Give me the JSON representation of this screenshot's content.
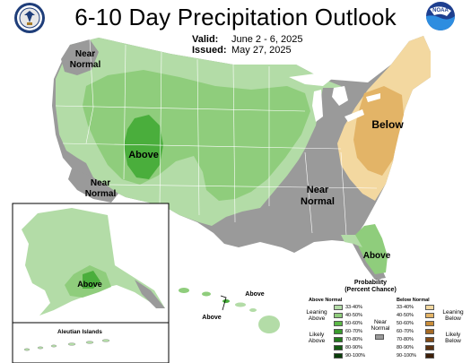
{
  "header": {
    "title": "6-10 Day Precipitation Outlook",
    "valid_label": "Valid:",
    "valid_value": "June 2 - 6, 2025",
    "issued_label": "Issued:",
    "issued_value": "May 27, 2025",
    "noaa_logo_text": "NOAA"
  },
  "map_labels": {
    "nw_near_normal_line1": "Near",
    "nw_near_normal_line2": "Normal",
    "sw_near_normal_line1": "Near",
    "sw_near_normal_line2": "Normal",
    "mid_near_normal_line1": "Near",
    "mid_near_normal_line2": "Normal",
    "above_rockies": "Above",
    "below_northeast": "Below",
    "above_florida": "Above",
    "above_alaska": "Above",
    "above_hawaii_1": "Above",
    "above_hawaii_2": "Above",
    "aleutian_islands": "Aleutian Islands"
  },
  "legend": {
    "title_line1": "Probability",
    "title_line2": "(Percent Chance)",
    "above_normal": "Above Normal",
    "below_normal": "Below Normal",
    "near_normal_line1": "Near",
    "near_normal_line2": "Normal",
    "leaning_above_1": "Leaning",
    "leaning_above_2": "Above",
    "likely_above_1": "Likely",
    "likely_above_2": "Above",
    "leaning_below_1": "Leaning",
    "leaning_below_2": "Below",
    "likely_below_1": "Likely",
    "likely_below_2": "Below",
    "above_bins": [
      {
        "range": "33-40%",
        "color": "#b3dca7"
      },
      {
        "range": "40-50%",
        "color": "#8fcd7c"
      },
      {
        "range": "50-60%",
        "color": "#5cb847"
      },
      {
        "range": "60-70%",
        "color": "#3a9b2e"
      },
      {
        "range": "70-80%",
        "color": "#237a1d"
      },
      {
        "range": "80-90%",
        "color": "#145a12"
      },
      {
        "range": "90-100%",
        "color": "#0a3d0a"
      }
    ],
    "below_bins": [
      {
        "range": "33-40%",
        "color": "#f3d8a0"
      },
      {
        "range": "40-50%",
        "color": "#e3b467"
      },
      {
        "range": "50-60%",
        "color": "#c98d3a"
      },
      {
        "range": "60-70%",
        "color": "#a56a25"
      },
      {
        "range": "70-80%",
        "color": "#804a18"
      },
      {
        "range": "80-90%",
        "color": "#5c3110"
      },
      {
        "range": "90-100%",
        "color": "#3d1f08"
      }
    ],
    "near_color": "#9a9a9a"
  },
  "colors": {
    "above_light": "#b3dca7",
    "above_mid": "#8fcd7c",
    "above_dark": "#4aae3c",
    "below_light": "#f3d8a0",
    "below_mid": "#e3b467",
    "near": "#9a9a9a",
    "water": "#ffffff",
    "border": "#ffffff"
  }
}
